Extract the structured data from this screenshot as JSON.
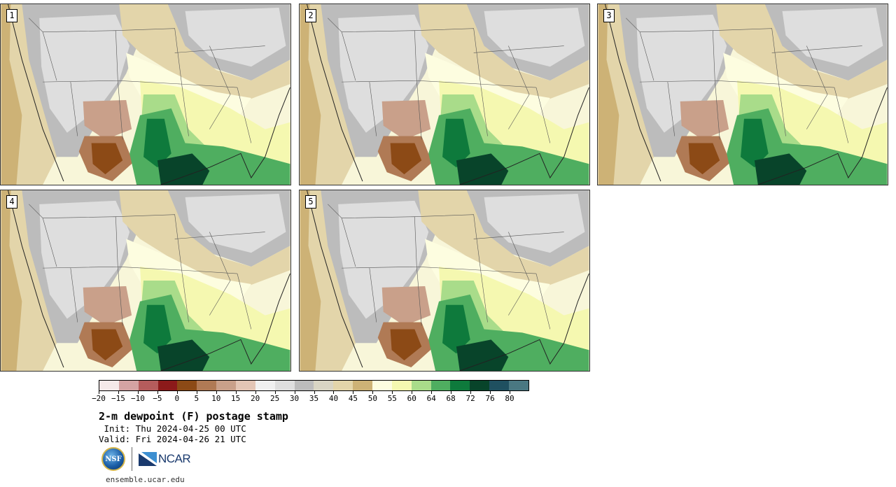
{
  "panels": [
    {
      "label": "1"
    },
    {
      "label": "2"
    },
    {
      "label": "3"
    },
    {
      "label": "4"
    },
    {
      "label": "5"
    }
  ],
  "colorbar": {
    "colors": [
      "#f5e9e9",
      "#d4a3a3",
      "#b55c5c",
      "#8c1a1a",
      "#8c4a16",
      "#b07a55",
      "#c9a08a",
      "#e3c5b5",
      "#f0f0f0",
      "#dedede",
      "#bcbcbc",
      "#d9d5c4",
      "#e3d5aa",
      "#cdb276",
      "#fdfde0",
      "#f5f8b0",
      "#a9dc8a",
      "#4fae60",
      "#0e7a3c",
      "#08442a",
      "#1f5060",
      "#4a7882"
    ],
    "tick_labels": [
      "−20",
      "−15",
      "−10",
      "−5",
      "0",
      "5",
      "10",
      "15",
      "20",
      "25",
      "30",
      "35",
      "40",
      "45",
      "50",
      "55",
      "60",
      "64",
      "68",
      "72",
      "76",
      "80"
    ]
  },
  "title": "2-m dewpoint (F) postage stamp",
  "init": " Init: Thu 2024-04-25 00 UTC",
  "valid": "Valid: Fri 2024-04-26 21 UTC",
  "logos": {
    "nsf": "NSF",
    "ncar": "NCAR"
  },
  "site": "ensemble.ucar.edu"
}
